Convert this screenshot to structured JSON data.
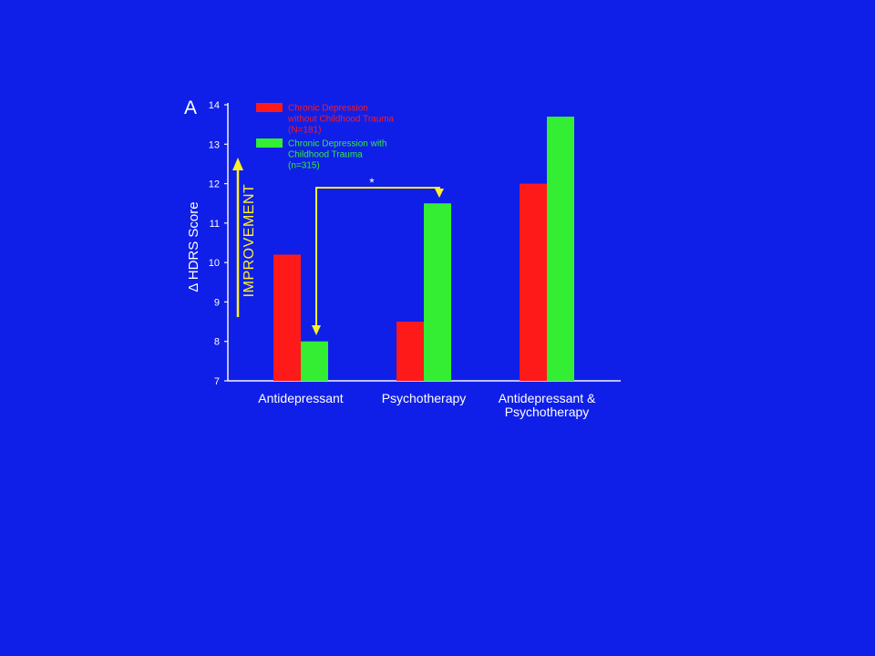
{
  "slide": {
    "background": "#0f1fe8"
  },
  "chart_data": {
    "type": "bar",
    "panel_label": "A",
    "categories": [
      "Antidepressant",
      "Psychotherapy",
      "Antidepressant & Psychotherapy"
    ],
    "category_lines": [
      [
        "Antidepressant"
      ],
      [
        "Psychotherapy"
      ],
      [
        "Antidepressant &",
        "Psychotherapy"
      ]
    ],
    "series": [
      {
        "name": "Chronic Depression without Childhood Trauma (N=181)",
        "legend_lines": [
          "Chronic Depression",
          "without Childhood Trauma",
          "(N=181)"
        ],
        "color": "#ff1a1a",
        "values": [
          10.2,
          8.5,
          12.0
        ]
      },
      {
        "name": "Chronic Depression with Childhood Trauma (n=315)",
        "legend_lines": [
          "Chronic Depression with",
          "Childhood Trauma",
          "(n=315)"
        ],
        "color": "#33ee33",
        "values": [
          8.0,
          11.5,
          13.7
        ]
      }
    ],
    "ylabel": "Δ HDRS Score",
    "xlabel": "",
    "ylim": [
      7,
      14
    ],
    "yticks": [
      7,
      8,
      9,
      10,
      11,
      12,
      13,
      14
    ],
    "grid": false,
    "legend": "top-left",
    "annotations": {
      "arrow_label": "IMPROVEMENT",
      "significance": "*"
    },
    "colors": {
      "plot_background": "#0f1fe8",
      "axis": "#f5f5f5",
      "text": "#ffffff",
      "annotation": "#ffef2a"
    }
  }
}
